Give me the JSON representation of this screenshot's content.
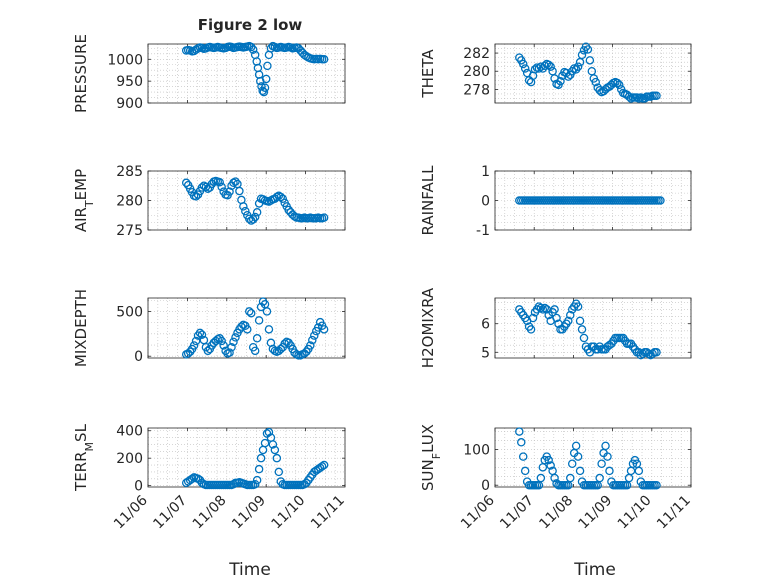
{
  "figure": {
    "title": "Figure 2 low",
    "marker_color": "#0072BD",
    "axis_color": "#262626",
    "grid_color": "#bdbdbd"
  },
  "chart_data": [
    {
      "type": "scatter",
      "ylabel": "PRESSURE",
      "ylim": [
        900,
        1035
      ],
      "yticks": [
        900,
        950,
        1000
      ],
      "ytick_labels": [
        "900",
        "950",
        "1000"
      ],
      "xlim": [
        0,
        5
      ],
      "x": [
        0.97,
        1.02,
        1.07,
        1.12,
        1.17,
        1.22,
        1.27,
        1.32,
        1.37,
        1.42,
        1.47,
        1.52,
        1.57,
        1.62,
        1.67,
        1.72,
        1.77,
        1.82,
        1.87,
        1.92,
        1.97,
        2.02,
        2.07,
        2.12,
        2.17,
        2.22,
        2.27,
        2.32,
        2.37,
        2.42,
        2.47,
        2.52,
        2.57,
        2.62,
        2.67,
        2.72,
        2.76,
        2.79,
        2.82,
        2.85,
        2.88,
        2.91,
        2.94,
        2.97,
        3.0,
        3.03,
        3.07,
        3.12,
        3.17,
        3.22,
        3.27,
        3.32,
        3.37,
        3.42,
        3.47,
        3.52,
        3.57,
        3.62,
        3.67,
        3.72,
        3.77,
        3.82,
        3.87,
        3.92,
        3.97,
        4.02,
        4.07,
        4.12,
        4.17,
        4.22,
        4.27,
        4.32,
        4.37,
        4.42,
        4.47
      ],
      "y": [
        1020,
        1021,
        1020,
        1018,
        1019,
        1022,
        1025,
        1027,
        1026,
        1024,
        1025,
        1027,
        1028,
        1027,
        1026,
        1027,
        1028,
        1027,
        1026,
        1025,
        1026,
        1028,
        1029,
        1028,
        1026,
        1027,
        1028,
        1029,
        1028,
        1027,
        1028,
        1029,
        1030,
        1028,
        1022,
        1010,
        995,
        980,
        965,
        950,
        938,
        928,
        925,
        935,
        955,
        985,
        1010,
        1025,
        1030,
        1028,
        1026,
        1027,
        1028,
        1027,
        1026,
        1027,
        1028,
        1027,
        1025,
        1026,
        1027,
        1025,
        1020,
        1015,
        1010,
        1007,
        1004,
        1002,
        1001,
        1000,
        1001,
        1000,
        1001,
        1000,
        1000
      ]
    },
    {
      "type": "scatter",
      "ylabel": "THETA",
      "ylim": [
        276.5,
        283
      ],
      "yticks": [
        278,
        280,
        282
      ],
      "ytick_labels": [
        "278",
        "280",
        "282"
      ],
      "xlim": [
        0,
        5
      ],
      "x": [
        0.62,
        0.67,
        0.72,
        0.77,
        0.82,
        0.87,
        0.92,
        0.97,
        1.02,
        1.07,
        1.12,
        1.17,
        1.22,
        1.27,
        1.32,
        1.37,
        1.42,
        1.47,
        1.52,
        1.57,
        1.62,
        1.67,
        1.72,
        1.77,
        1.82,
        1.87,
        1.92,
        1.97,
        2.02,
        2.07,
        2.12,
        2.17,
        2.22,
        2.27,
        2.32,
        2.37,
        2.42,
        2.47,
        2.52,
        2.57,
        2.62,
        2.67,
        2.72,
        2.77,
        2.82,
        2.87,
        2.92,
        2.97,
        3.02,
        3.07,
        3.12,
        3.17,
        3.22,
        3.27,
        3.32,
        3.37,
        3.42,
        3.47,
        3.52,
        3.57,
        3.62,
        3.67,
        3.72,
        3.77,
        3.82,
        3.87,
        3.92,
        3.97,
        4.02,
        4.07,
        4.12
      ],
      "y": [
        281.5,
        281.2,
        280.8,
        280.3,
        279.8,
        279.0,
        278.8,
        279.5,
        280.2,
        280.4,
        280.3,
        280.5,
        280.3,
        280.6,
        280.8,
        280.7,
        280.5,
        280.0,
        279.2,
        278.6,
        278.5,
        278.9,
        279.5,
        279.9,
        279.8,
        279.4,
        279.6,
        280.0,
        280.3,
        280.2,
        280.5,
        281.0,
        281.8,
        282.3,
        282.7,
        282.4,
        281.2,
        280.0,
        279.2,
        278.8,
        278.2,
        277.9,
        277.7,
        277.8,
        278.0,
        278.2,
        278.3,
        278.5,
        278.7,
        278.8,
        278.7,
        278.5,
        278.0,
        277.6,
        277.5,
        277.4,
        277.2,
        277.0,
        277.1,
        277.1,
        277.1,
        277.0,
        277.1,
        277.0,
        277.0,
        277.2,
        277.2,
        277.2,
        277.3,
        277.3,
        277.3
      ]
    },
    {
      "type": "scatter",
      "ylabel": "AIR_TEMP",
      "ylim": [
        275,
        285
      ],
      "yticks": [
        275,
        280,
        285
      ],
      "ytick_labels": [
        "275",
        "280",
        "285"
      ],
      "xlim": [
        0,
        5
      ],
      "x": [
        0.97,
        1.02,
        1.07,
        1.12,
        1.17,
        1.22,
        1.27,
        1.32,
        1.37,
        1.42,
        1.47,
        1.52,
        1.57,
        1.62,
        1.67,
        1.72,
        1.77,
        1.82,
        1.87,
        1.92,
        1.97,
        2.02,
        2.07,
        2.12,
        2.17,
        2.22,
        2.27,
        2.32,
        2.37,
        2.42,
        2.47,
        2.52,
        2.57,
        2.62,
        2.67,
        2.72,
        2.77,
        2.82,
        2.87,
        2.92,
        2.97,
        3.02,
        3.07,
        3.12,
        3.17,
        3.22,
        3.27,
        3.32,
        3.37,
        3.42,
        3.47,
        3.52,
        3.57,
        3.62,
        3.67,
        3.72,
        3.77,
        3.82,
        3.87,
        3.92,
        3.97,
        4.02,
        4.07,
        4.12,
        4.17,
        4.22,
        4.27,
        4.32,
        4.37,
        4.42,
        4.47
      ],
      "y": [
        283.0,
        282.6,
        282.0,
        281.4,
        280.8,
        280.7,
        281.0,
        281.6,
        282.2,
        282.5,
        282.3,
        282.0,
        282.2,
        282.8,
        283.2,
        283.3,
        283.2,
        283.1,
        282.3,
        281.5,
        281.0,
        280.9,
        281.5,
        282.5,
        283.0,
        283.2,
        282.8,
        281.6,
        280.1,
        279.0,
        278.2,
        277.5,
        276.9,
        276.6,
        276.8,
        277.2,
        278.0,
        279.5,
        280.3,
        280.2,
        280.0,
        279.9,
        279.8,
        280.0,
        280.2,
        280.3,
        280.6,
        280.8,
        280.6,
        280.3,
        279.6,
        279.0,
        278.4,
        278.0,
        277.6,
        277.3,
        277.1,
        277.1,
        277.0,
        277.0,
        277.1,
        277.0,
        277.0,
        277.1,
        277.0,
        277.0,
        277.0,
        277.1,
        277.0,
        277.0,
        277.1
      ]
    },
    {
      "type": "scatter",
      "ylabel": "RAINFALL",
      "ylim": [
        -1,
        1
      ],
      "yticks": [
        -1,
        0,
        1
      ],
      "ytick_labels": [
        "-1",
        "0",
        "1"
      ],
      "xlim": [
        0,
        5
      ],
      "x": [
        0.62,
        0.67,
        0.72,
        0.77,
        0.82,
        0.87,
        0.92,
        0.97,
        1.02,
        1.07,
        1.12,
        1.17,
        1.22,
        1.27,
        1.32,
        1.37,
        1.42,
        1.47,
        1.52,
        1.57,
        1.62,
        1.67,
        1.72,
        1.77,
        1.82,
        1.87,
        1.92,
        1.97,
        2.02,
        2.07,
        2.12,
        2.17,
        2.22,
        2.27,
        2.32,
        2.37,
        2.42,
        2.47,
        2.52,
        2.57,
        2.62,
        2.67,
        2.72,
        2.77,
        2.82,
        2.87,
        2.92,
        2.97,
        3.02,
        3.07,
        3.12,
        3.17,
        3.22,
        3.27,
        3.32,
        3.37,
        3.42,
        3.47,
        3.52,
        3.57,
        3.62,
        3.67,
        3.72,
        3.77,
        3.82,
        3.87,
        3.92,
        3.97,
        4.02,
        4.07,
        4.12,
        4.17,
        4.22
      ],
      "y": [
        0,
        0,
        0,
        0,
        0,
        0,
        0,
        0,
        0,
        0,
        0,
        0,
        0,
        0,
        0,
        0,
        0,
        0,
        0,
        0,
        0,
        0,
        0,
        0,
        0,
        0,
        0,
        0,
        0,
        0,
        0,
        0,
        0,
        0,
        0,
        0,
        0,
        0,
        0,
        0,
        0,
        0,
        0,
        0,
        0,
        0,
        0,
        0,
        0,
        0,
        0,
        0,
        0,
        0,
        0,
        0,
        0,
        0,
        0,
        0,
        0,
        0,
        0,
        0,
        0,
        0,
        0,
        0,
        0,
        0,
        0,
        0,
        0
      ]
    },
    {
      "type": "scatter",
      "ylabel": "MIXDEPTH",
      "ylim": [
        -20,
        650
      ],
      "yticks": [
        0,
        500
      ],
      "ytick_labels": [
        "0",
        "500"
      ],
      "xlim": [
        0,
        5
      ],
      "x": [
        0.97,
        1.02,
        1.07,
        1.12,
        1.17,
        1.22,
        1.27,
        1.32,
        1.37,
        1.42,
        1.47,
        1.52,
        1.57,
        1.62,
        1.67,
        1.72,
        1.77,
        1.82,
        1.87,
        1.92,
        1.97,
        2.02,
        2.07,
        2.12,
        2.17,
        2.22,
        2.27,
        2.32,
        2.37,
        2.42,
        2.47,
        2.52,
        2.57,
        2.62,
        2.67,
        2.72,
        2.77,
        2.82,
        2.87,
        2.92,
        2.97,
        3.02,
        3.07,
        3.12,
        3.17,
        3.22,
        3.27,
        3.32,
        3.37,
        3.42,
        3.47,
        3.52,
        3.57,
        3.62,
        3.67,
        3.72,
        3.77,
        3.82,
        3.87,
        3.92,
        3.97,
        4.02,
        4.07,
        4.12,
        4.17,
        4.22,
        4.27,
        4.32,
        4.37,
        4.42,
        4.47
      ],
      "y": [
        20,
        30,
        50,
        80,
        120,
        170,
        230,
        260,
        240,
        180,
        100,
        60,
        80,
        120,
        150,
        170,
        190,
        200,
        170,
        120,
        60,
        30,
        40,
        100,
        160,
        210,
        260,
        300,
        330,
        350,
        340,
        300,
        500,
        480,
        100,
        60,
        200,
        400,
        550,
        610,
        580,
        500,
        300,
        150,
        80,
        60,
        50,
        60,
        80,
        100,
        140,
        160,
        150,
        120,
        80,
        40,
        20,
        10,
        10,
        20,
        30,
        50,
        80,
        120,
        180,
        230,
        280,
        320,
        380,
        340,
        300
      ]
    },
    {
      "type": "scatter",
      "ylabel": "H2OMIXRA",
      "ylim": [
        4.8,
        6.9
      ],
      "yticks": [
        5,
        6
      ],
      "ytick_labels": [
        "5",
        "6"
      ],
      "xlim": [
        0,
        5
      ],
      "x": [
        0.62,
        0.67,
        0.72,
        0.77,
        0.82,
        0.87,
        0.92,
        0.97,
        1.02,
        1.07,
        1.12,
        1.17,
        1.22,
        1.27,
        1.32,
        1.37,
        1.42,
        1.47,
        1.52,
        1.57,
        1.62,
        1.67,
        1.72,
        1.77,
        1.82,
        1.87,
        1.92,
        1.97,
        2.02,
        2.07,
        2.12,
        2.17,
        2.22,
        2.27,
        2.32,
        2.37,
        2.42,
        2.47,
        2.52,
        2.57,
        2.62,
        2.67,
        2.72,
        2.77,
        2.82,
        2.87,
        2.92,
        2.97,
        3.02,
        3.07,
        3.12,
        3.17,
        3.22,
        3.27,
        3.32,
        3.37,
        3.42,
        3.47,
        3.52,
        3.57,
        3.62,
        3.67,
        3.72,
        3.77,
        3.82,
        3.87,
        3.92,
        3.97,
        4.02,
        4.07,
        4.12
      ],
      "y": [
        6.5,
        6.4,
        6.3,
        6.2,
        6.1,
        5.9,
        5.8,
        6.2,
        6.4,
        6.5,
        6.6,
        6.55,
        6.5,
        6.55,
        6.5,
        6.3,
        6.1,
        6.4,
        6.5,
        6.2,
        6.0,
        5.8,
        5.8,
        5.9,
        6.0,
        6.1,
        6.3,
        6.5,
        6.6,
        6.7,
        6.6,
        6.1,
        5.8,
        5.5,
        5.2,
        5.1,
        5.0,
        5.2,
        5.2,
        5.1,
        5.1,
        5.2,
        5.1,
        5.1,
        5.1,
        5.2,
        5.25,
        5.3,
        5.4,
        5.5,
        5.5,
        5.5,
        5.5,
        5.5,
        5.4,
        5.3,
        5.3,
        5.3,
        5.2,
        5.1,
        5.0,
        5.0,
        4.9,
        4.95,
        5.0,
        5.0,
        4.95,
        4.9,
        4.95,
        5.0,
        5.0
      ]
    },
    {
      "type": "scatter",
      "ylabel": "TERR_MSL",
      "ylim": [
        -10,
        420
      ],
      "yticks": [
        0,
        200,
        400
      ],
      "ytick_labels": [
        "0",
        "200",
        "400"
      ],
      "xlim": [
        0,
        5
      ],
      "x": [
        0.97,
        1.02,
        1.07,
        1.12,
        1.17,
        1.22,
        1.27,
        1.32,
        1.37,
        1.42,
        1.47,
        1.52,
        1.57,
        1.62,
        1.67,
        1.72,
        1.77,
        1.82,
        1.87,
        1.92,
        1.97,
        2.02,
        2.07,
        2.12,
        2.17,
        2.22,
        2.27,
        2.32,
        2.37,
        2.42,
        2.47,
        2.52,
        2.57,
        2.62,
        2.67,
        2.72,
        2.77,
        2.82,
        2.87,
        2.92,
        2.97,
        3.02,
        3.07,
        3.12,
        3.17,
        3.22,
        3.27,
        3.32,
        3.37,
        3.42,
        3.47,
        3.52,
        3.57,
        3.62,
        3.67,
        3.72,
        3.77,
        3.82,
        3.87,
        3.92,
        3.97,
        4.02,
        4.07,
        4.12,
        4.17,
        4.22,
        4.27,
        4.32,
        4.37,
        4.42,
        4.47
      ],
      "y": [
        20,
        30,
        40,
        50,
        60,
        55,
        50,
        40,
        20,
        10,
        5,
        5,
        5,
        5,
        5,
        5,
        5,
        5,
        5,
        5,
        5,
        5,
        5,
        5,
        10,
        20,
        20,
        25,
        20,
        15,
        10,
        5,
        5,
        5,
        5,
        10,
        40,
        120,
        200,
        260,
        310,
        380,
        390,
        350,
        300,
        260,
        200,
        100,
        30,
        10,
        5,
        5,
        5,
        5,
        5,
        5,
        5,
        5,
        5,
        5,
        10,
        20,
        40,
        60,
        80,
        100,
        110,
        120,
        130,
        140,
        150
      ]
    },
    {
      "type": "scatter",
      "ylabel": "SUN_FLUX",
      "ylim": [
        -5,
        160
      ],
      "yticks": [
        0,
        100
      ],
      "ytick_labels": [
        "0",
        "100"
      ],
      "xlim": [
        0,
        5
      ],
      "x": [
        0.62,
        0.67,
        0.72,
        0.77,
        0.82,
        0.87,
        0.92,
        0.97,
        1.02,
        1.07,
        1.12,
        1.17,
        1.22,
        1.27,
        1.32,
        1.37,
        1.42,
        1.47,
        1.52,
        1.57,
        1.62,
        1.67,
        1.72,
        1.77,
        1.82,
        1.87,
        1.92,
        1.97,
        2.02,
        2.07,
        2.12,
        2.17,
        2.22,
        2.27,
        2.32,
        2.37,
        2.42,
        2.47,
        2.52,
        2.57,
        2.62,
        2.67,
        2.72,
        2.77,
        2.82,
        2.87,
        2.92,
        2.97,
        3.02,
        3.07,
        3.12,
        3.17,
        3.22,
        3.27,
        3.32,
        3.37,
        3.42,
        3.47,
        3.52,
        3.57,
        3.62,
        3.67,
        3.72,
        3.77,
        3.82,
        3.87,
        3.92,
        3.97,
        4.02,
        4.07,
        4.12
      ],
      "y": [
        150,
        120,
        80,
        40,
        10,
        0,
        0,
        0,
        0,
        0,
        0,
        20,
        50,
        70,
        80,
        70,
        55,
        40,
        20,
        5,
        0,
        0,
        0,
        0,
        0,
        0,
        20,
        60,
        90,
        110,
        80,
        40,
        10,
        0,
        0,
        0,
        0,
        0,
        0,
        0,
        0,
        20,
        60,
        90,
        110,
        80,
        40,
        10,
        0,
        0,
        0,
        0,
        0,
        0,
        0,
        0,
        20,
        40,
        60,
        70,
        60,
        40,
        10,
        0,
        0,
        0,
        0,
        0,
        0,
        0,
        0
      ]
    }
  ],
  "x_axis": {
    "tick_values": [
      0,
      1,
      2,
      3,
      4,
      5
    ],
    "tick_labels": [
      "11/06",
      "11/07",
      "11/08",
      "11/09",
      "11/10",
      "11/11"
    ],
    "label": "Time"
  }
}
